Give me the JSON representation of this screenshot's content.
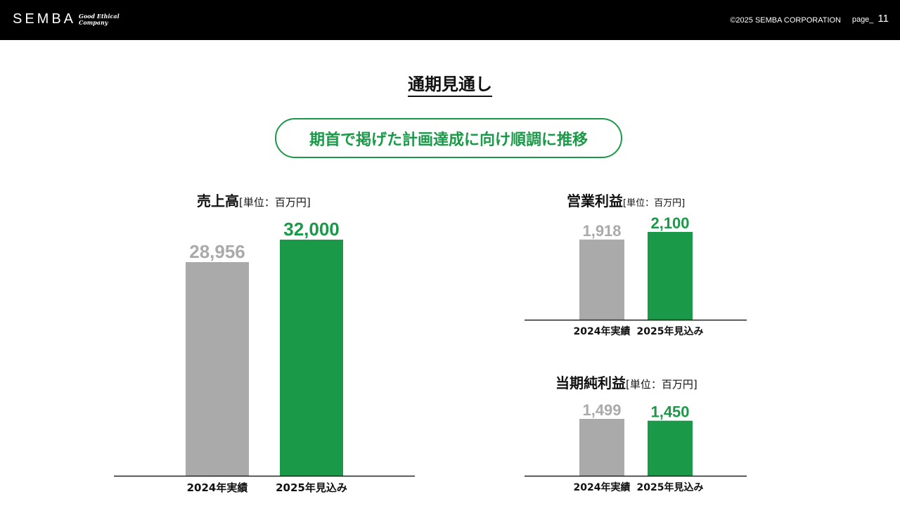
{
  "header": {
    "logo": "SEMBA",
    "tagline_line1": "Good Ethical",
    "tagline_line2": "Company",
    "copyright": "©2025 SEMBA CORPORATION",
    "page_label": "page_",
    "page_number": "11"
  },
  "title": "通期見通し",
  "headline": "期首で掲げた計画達成に向け順調に推移",
  "colors": {
    "accent": "#1a9a48",
    "prior_bar": "#aaaaaa",
    "header_bg": "#000000"
  },
  "chart_data": [
    {
      "type": "bar",
      "title": "売上高",
      "unit": "[単位：百万円]",
      "categories": [
        "2024年実績",
        "2025年見込み"
      ],
      "values": [
        28956,
        32000
      ],
      "value_labels": [
        "28,956",
        "32,000"
      ],
      "ylim": [
        0,
        32000
      ],
      "grid": false
    },
    {
      "type": "bar",
      "title": "営業利益",
      "unit": "[単位：百万円]",
      "categories": [
        "2024年実績",
        "2025年見込み"
      ],
      "values": [
        1918,
        2100
      ],
      "value_labels": [
        "1,918",
        "2,100"
      ],
      "ylim": [
        0,
        2100
      ],
      "grid": false
    },
    {
      "type": "bar",
      "title": "当期純利益",
      "unit": "[単位：百万円]",
      "categories": [
        "2024年実績",
        "2025年見込み"
      ],
      "values": [
        1499,
        1450
      ],
      "value_labels": [
        "1,499",
        "1,450"
      ],
      "ylim": [
        0,
        1499
      ],
      "grid": false
    }
  ]
}
